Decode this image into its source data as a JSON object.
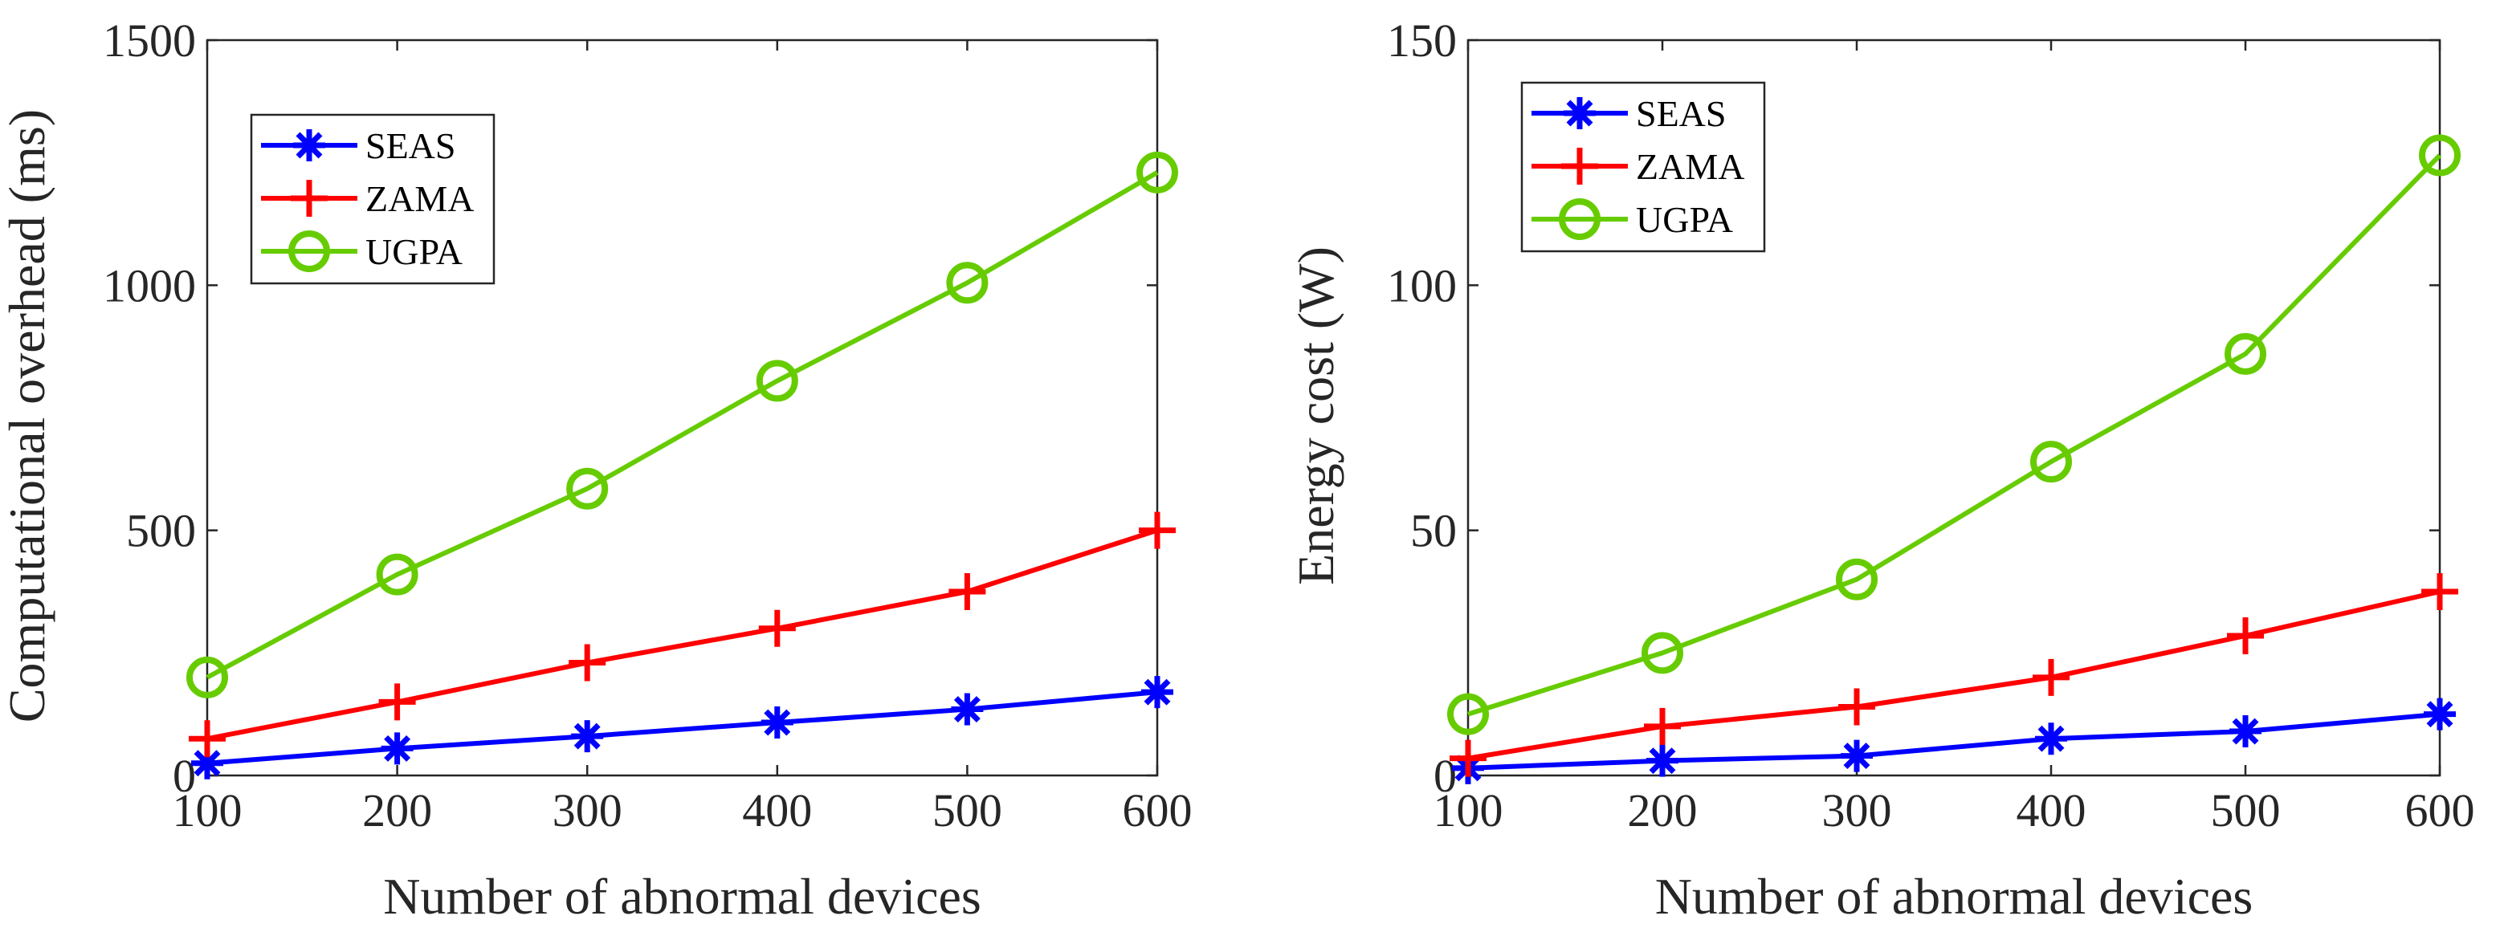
{
  "chart_data": [
    {
      "type": "line",
      "title": "",
      "xlabel": "Number of abnormal devices",
      "ylabel": "Computational overhead (ms)",
      "x": [
        100,
        200,
        300,
        400,
        500,
        600
      ],
      "xlim": [
        100,
        600
      ],
      "ylim": [
        0,
        1500
      ],
      "xticks": [
        "100",
        "200",
        "300",
        "400",
        "500",
        "600"
      ],
      "yticks": [
        "0",
        "500",
        "1000",
        "1500"
      ],
      "grid": false,
      "legend": "top-left",
      "series": [
        {
          "name": "SEAS",
          "color": "#0000ff",
          "marker": "asterisk",
          "values": [
            25,
            55,
            80,
            108,
            135,
            170
          ]
        },
        {
          "name": "ZAMA",
          "color": "#ff0000",
          "marker": "plus",
          "values": [
            75,
            150,
            230,
            300,
            375,
            500
          ]
        },
        {
          "name": "UGPA",
          "color": "#66cc00",
          "marker": "circle",
          "values": [
            200,
            410,
            585,
            805,
            1005,
            1230
          ]
        }
      ]
    },
    {
      "type": "line",
      "title": "",
      "xlabel": "Number of abnormal devices",
      "ylabel": "Energy cost (W)",
      "x": [
        100,
        200,
        300,
        400,
        500,
        600
      ],
      "xlim": [
        100,
        600
      ],
      "ylim": [
        0,
        150
      ],
      "xticks": [
        "100",
        "200",
        "300",
        "400",
        "500",
        "600"
      ],
      "yticks": [
        "0",
        "50",
        "100",
        "150"
      ],
      "grid": false,
      "legend": "top-left",
      "series": [
        {
          "name": "SEAS",
          "color": "#0000ff",
          "marker": "asterisk",
          "values": [
            1.5,
            3.0,
            4.0,
            7.5,
            9.0,
            12.5
          ]
        },
        {
          "name": "ZAMA",
          "color": "#ff0000",
          "marker": "plus",
          "values": [
            3.5,
            10.0,
            14.0,
            20.0,
            28.5,
            37.5
          ]
        },
        {
          "name": "UGPA",
          "color": "#66cc00",
          "marker": "circle",
          "values": [
            12.5,
            25.0,
            40.0,
            64.0,
            86.0,
            126.5
          ]
        }
      ]
    }
  ]
}
